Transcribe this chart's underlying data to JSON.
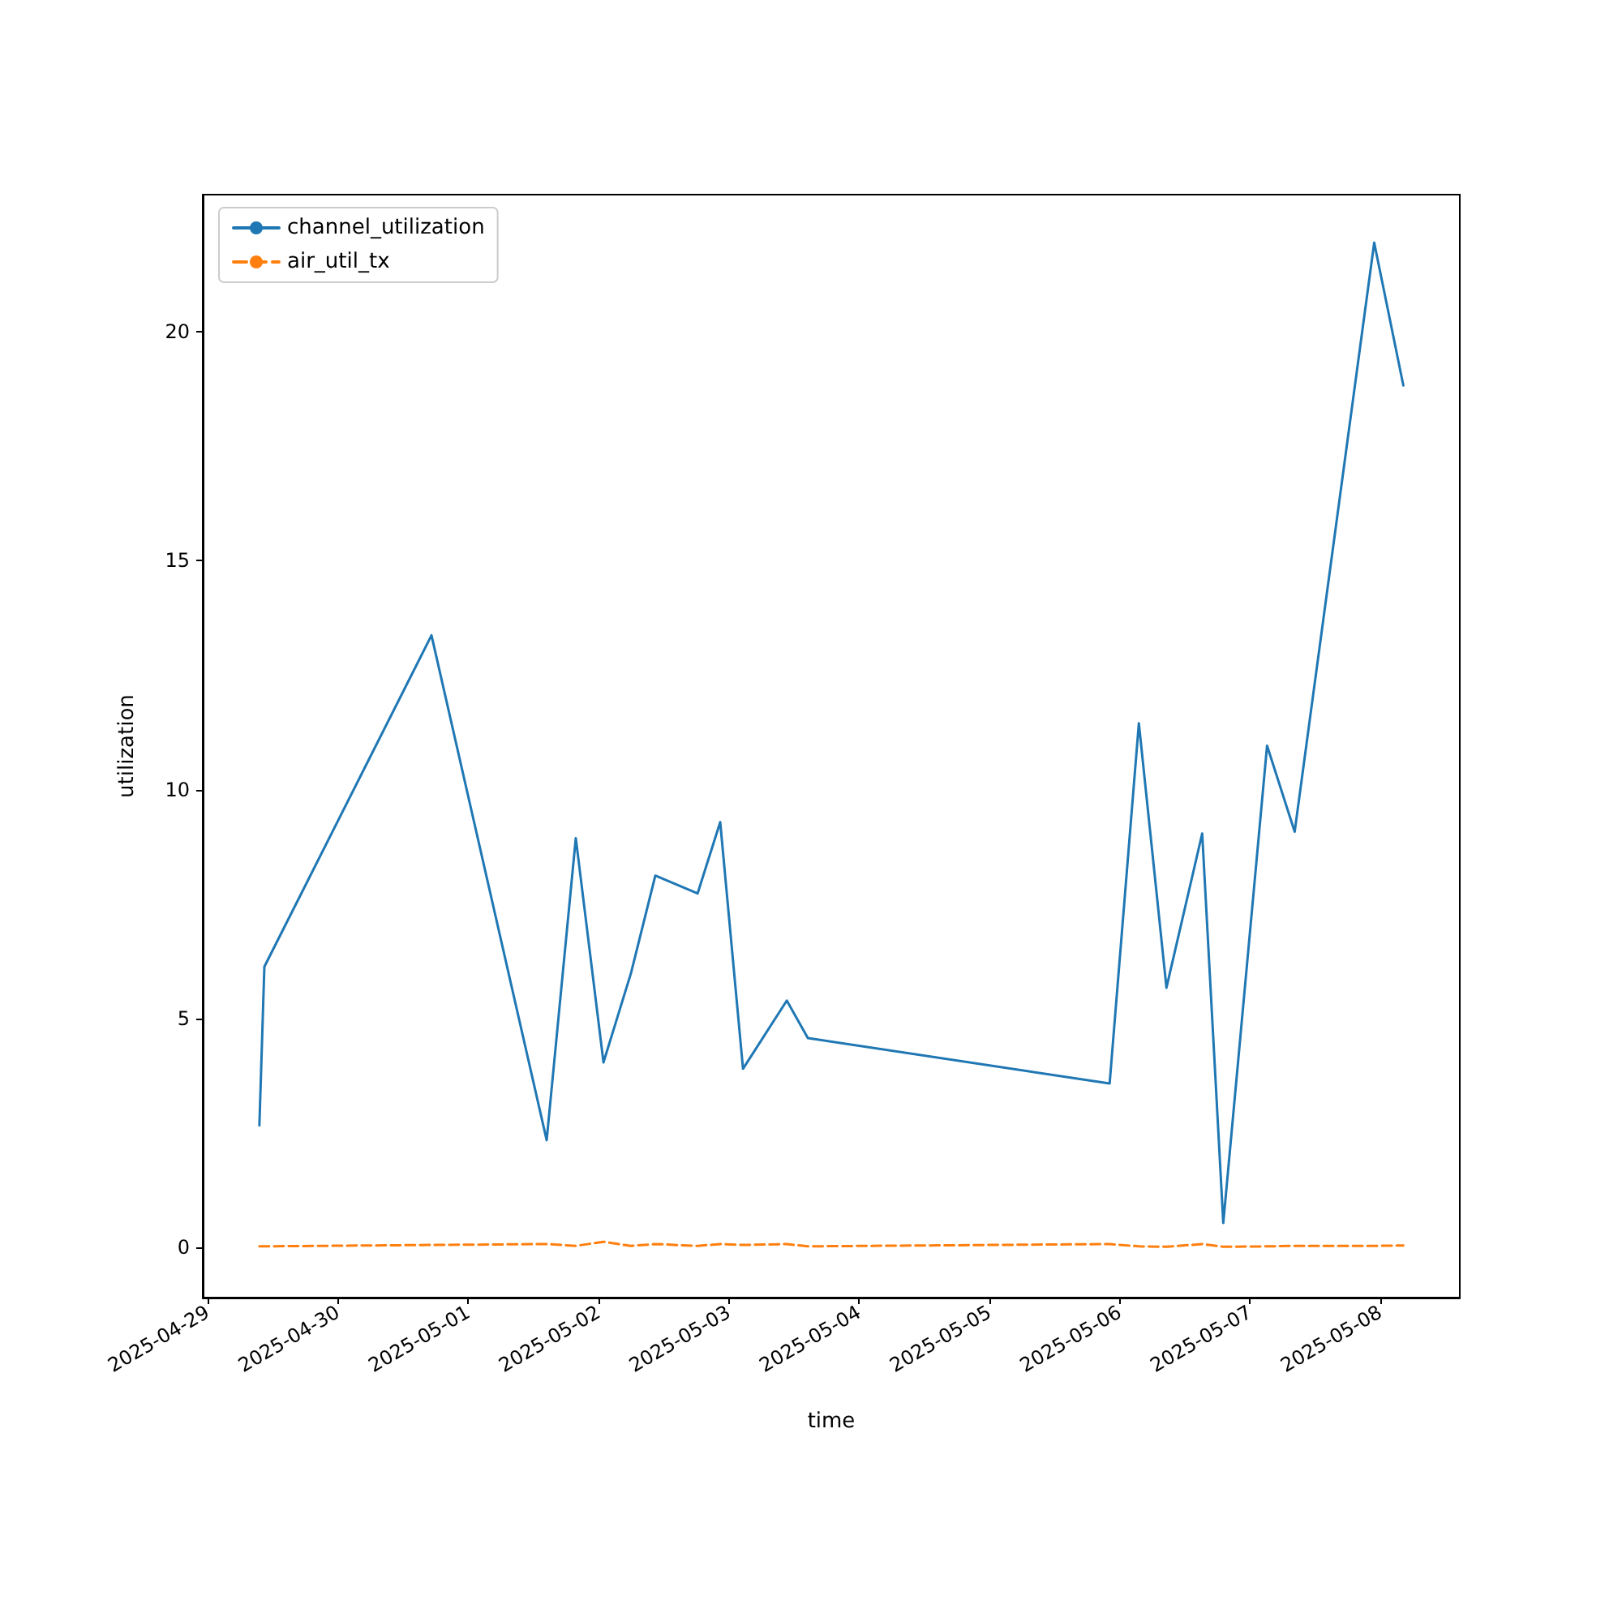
{
  "chart_data": {
    "type": "line",
    "xlabel": "time",
    "ylabel": "utilization",
    "x": [
      "2025-04-29T09:33",
      "2025-04-29T10:28",
      "2025-04-30T17:15",
      "2025-05-01T14:28",
      "2025-05-01T19:50",
      "2025-05-02T00:56",
      "2025-05-02T06:00",
      "2025-05-02T10:29",
      "2025-05-02T18:16",
      "2025-05-02T22:26",
      "2025-05-03T02:38",
      "2025-05-03T10:42",
      "2025-05-03T14:35",
      "2025-05-05T22:10",
      "2025-05-06T03:33",
      "2025-05-06T08:38",
      "2025-05-06T15:13",
      "2025-05-06T19:06",
      "2025-05-07T03:10",
      "2025-05-07T08:15",
      "2025-05-07T22:54",
      "2025-05-08T04:16"
    ],
    "series": [
      {
        "name": "channel_utilization",
        "color": "#1f77b4",
        "line_style": "solid",
        "values": [
          2.66,
          6.13,
          13.37,
          2.34,
          8.94,
          4.04,
          5.99,
          8.12,
          7.73,
          9.29,
          3.9,
          5.39,
          4.57,
          3.58,
          11.45,
          5.67,
          9.04,
          0.53,
          10.96,
          9.08,
          21.95,
          18.83
        ]
      },
      {
        "name": "air_util_tx",
        "color": "#ff7f0e",
        "line_style": "dashed",
        "values": [
          0.02,
          0.02,
          0.05,
          0.07,
          0.03,
          0.12,
          0.03,
          0.07,
          0.03,
          0.07,
          0.05,
          0.07,
          0.02,
          0.07,
          0.02,
          0.01,
          0.07,
          0.01,
          0.02,
          0.03,
          0.03,
          0.04
        ]
      }
    ],
    "xlim": [
      "2025-04-28T23:07",
      "2025-05-08T14:40"
    ],
    "xticks": [
      "2025-04-29",
      "2025-04-30",
      "2025-05-01",
      "2025-05-02",
      "2025-05-03",
      "2025-05-04",
      "2025-05-05",
      "2025-05-06",
      "2025-05-07",
      "2025-05-08"
    ],
    "ylim": [
      -1.1,
      23
    ],
    "yticks": [
      0,
      5,
      10,
      15,
      20
    ],
    "grid": false,
    "legend": "top left",
    "marker": "none"
  }
}
